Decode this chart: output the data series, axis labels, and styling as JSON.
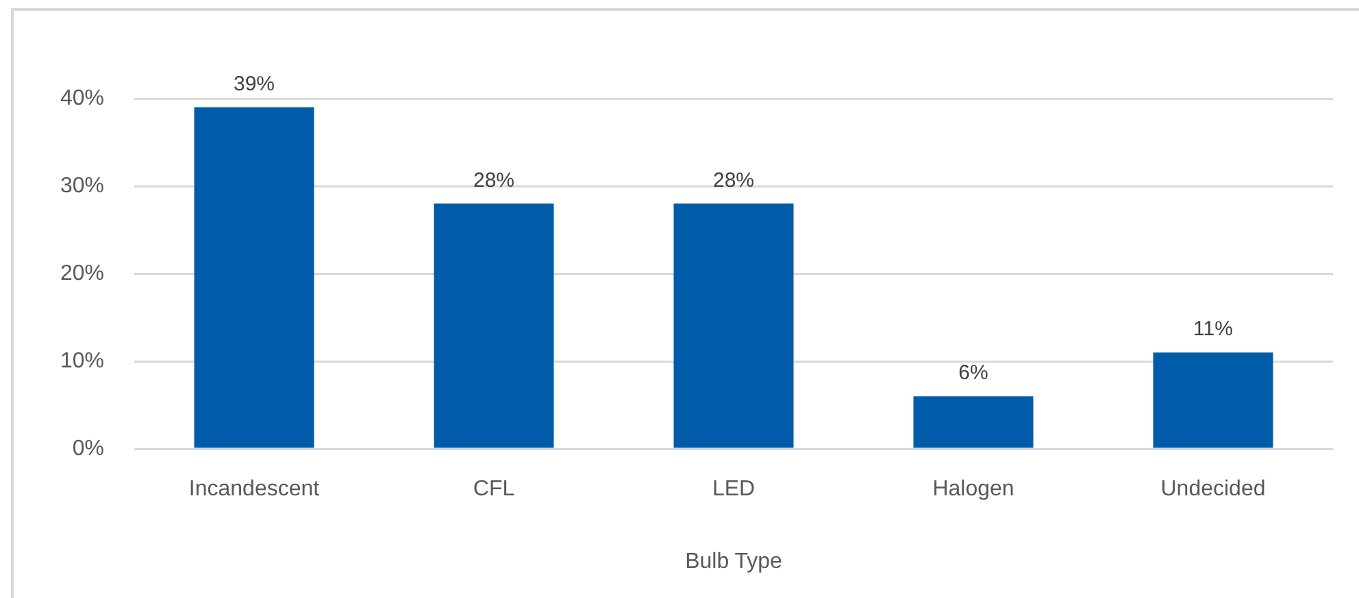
{
  "chart_data": {
    "type": "bar",
    "xlabel": "Bulb Type",
    "categories": [
      "Incandescent",
      "CFL",
      "LED",
      "Halogen",
      "Undecided"
    ],
    "values": [
      39,
      28,
      28,
      6,
      11
    ],
    "color": "#005ca9",
    "value_labels": [
      "39%",
      "28%",
      "28%",
      "6%",
      "11%"
    ],
    "ylim": [
      0,
      40
    ],
    "yticks": [
      {
        "value": 0,
        "label": "0%"
      },
      {
        "value": 10,
        "label": "10%"
      },
      {
        "value": 20,
        "label": "20%"
      },
      {
        "value": 30,
        "label": "30%"
      },
      {
        "value": 40,
        "label": "40%"
      }
    ],
    "grid": "y"
  }
}
